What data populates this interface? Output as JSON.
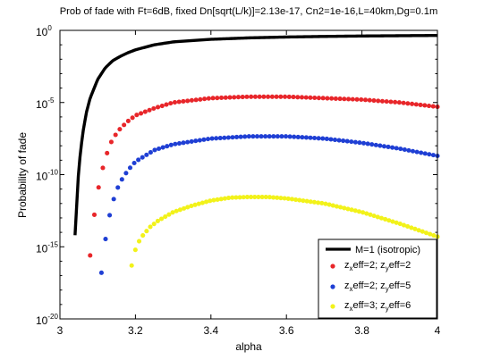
{
  "chart_data": {
    "type": "scatter",
    "title": "Prob of fade with Ft=6dB, fixed Dn[sqrt(L/k)]=2.13e-17, Cn2=1e-16,L=40km,Dg=0.1m",
    "xlabel": "alpha",
    "ylabel": "Probability of fade",
    "xlim": [
      3,
      4
    ],
    "ylim_log10": [
      -20,
      0
    ],
    "yscale": "log",
    "x_ticks": [
      "3",
      "3.2",
      "3.4",
      "3.6",
      "3.8",
      "4"
    ],
    "x_tick_values": [
      3,
      3.2,
      3.4,
      3.6,
      3.8,
      4
    ],
    "y_ticks": [
      {
        "exp": -20,
        "base": "10",
        "sup": "-20"
      },
      {
        "exp": -15,
        "base": "10",
        "sup": "-15"
      },
      {
        "exp": -10,
        "base": "10",
        "sup": "-10"
      },
      {
        "exp": -5,
        "base": "10",
        "sup": "-5"
      },
      {
        "exp": 0,
        "base": "10",
        "sup": "0"
      }
    ],
    "grid": false,
    "legend_placement": "bottom-right",
    "series": [
      {
        "key": "iso",
        "style": "line",
        "color": "#000000",
        "legend": {
          "text": "M=1 (isotropic)"
        },
        "x": [
          3.04,
          3.05,
          3.06,
          3.07,
          3.08,
          3.1,
          3.12,
          3.14,
          3.16,
          3.18,
          3.2,
          3.25,
          3.3,
          3.4,
          3.5,
          3.6,
          3.7,
          3.8,
          3.9,
          4.0
        ],
        "log10_y": [
          -14.2,
          -9.5,
          -7.2,
          -5.7,
          -4.7,
          -3.4,
          -2.6,
          -2.1,
          -1.8,
          -1.55,
          -1.35,
          -1.0,
          -0.8,
          -0.62,
          -0.52,
          -0.46,
          -0.42,
          -0.39,
          -0.37,
          -0.35
        ]
      },
      {
        "key": "s22",
        "style": "markers",
        "color": "#e8262a",
        "legend": {
          "a": "z",
          "a_sub": "x",
          "b": "eff=2; z",
          "b_sub": "y",
          "c": "eff=2"
        },
        "x": [
          3.08,
          3.09,
          3.1,
          3.11,
          3.12,
          3.13,
          3.14,
          3.16,
          3.18,
          3.2,
          3.25,
          3.3,
          3.4,
          3.5,
          3.6,
          3.7,
          3.8,
          3.9,
          4.0
        ],
        "log10_y": [
          -15.6,
          -13.0,
          -11.2,
          -9.9,
          -8.9,
          -8.1,
          -7.5,
          -6.8,
          -6.3,
          -5.9,
          -5.4,
          -5.0,
          -4.7,
          -4.6,
          -4.6,
          -4.7,
          -4.8,
          -5.0,
          -5.3
        ]
      },
      {
        "key": "s25",
        "style": "markers",
        "color": "#1f3fd4",
        "legend": {
          "a": "z",
          "a_sub": "x",
          "b": "eff=2; z",
          "b_sub": "y",
          "c": "eff=5"
        },
        "x": [
          3.11,
          3.12,
          3.13,
          3.14,
          3.15,
          3.16,
          3.18,
          3.2,
          3.25,
          3.3,
          3.4,
          3.5,
          3.6,
          3.7,
          3.8,
          3.9,
          4.0
        ],
        "log10_y": [
          -16.8,
          -14.6,
          -13.0,
          -11.9,
          -11.1,
          -10.5,
          -9.7,
          -9.1,
          -8.3,
          -7.9,
          -7.5,
          -7.35,
          -7.35,
          -7.5,
          -7.8,
          -8.2,
          -8.7
        ]
      },
      {
        "key": "s36",
        "style": "markers",
        "color": "#f2f21a",
        "legend": {
          "a": "z",
          "a_sub": "x",
          "b": "eff=3; z",
          "b_sub": "y",
          "c": "eff=6"
        },
        "x": [
          3.19,
          3.2,
          3.21,
          3.22,
          3.24,
          3.26,
          3.3,
          3.35,
          3.4,
          3.45,
          3.5,
          3.55,
          3.6,
          3.7,
          3.8,
          3.9,
          4.0
        ],
        "log10_y": [
          -16.3,
          -15.2,
          -14.6,
          -14.2,
          -13.6,
          -13.2,
          -12.6,
          -12.15,
          -11.8,
          -11.6,
          -11.55,
          -11.55,
          -11.65,
          -12.0,
          -12.6,
          -13.4,
          -14.3
        ]
      }
    ]
  }
}
